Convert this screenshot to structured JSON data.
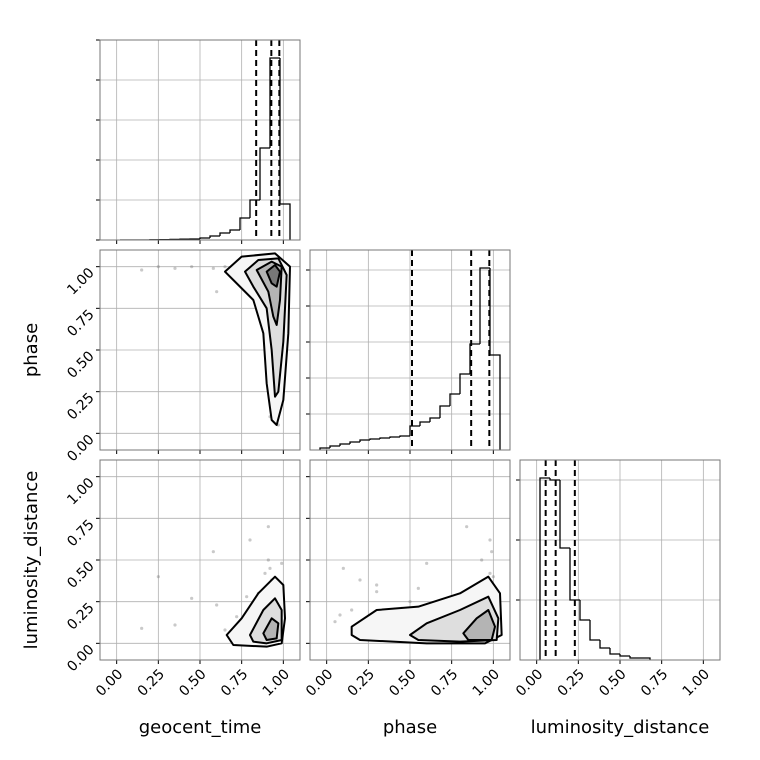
{
  "chart_data": {
    "type": "corner",
    "parameters": [
      "geocent_time",
      "phase",
      "luminosity_distance"
    ],
    "lim": [
      -0.1,
      1.1
    ],
    "ticks": [
      {
        "value": 0,
        "label": "0.00"
      },
      {
        "value": 0.25,
        "label": "0.25"
      },
      {
        "value": 0.5,
        "label": "0.50"
      },
      {
        "value": 0.75,
        "label": "0.75"
      },
      {
        "value": 1,
        "label": "1.00"
      }
    ],
    "grid": true,
    "samples": [
      [
        0.95,
        0.93,
        0.97,
        0.91,
        0.88,
        0.96,
        0.94,
        0.99,
        0.85,
        0.92,
        0.9,
        0.98,
        0.95,
        0.82,
        0.93,
        0.96,
        0.89,
        0.94,
        0.97,
        0.78,
        0.91,
        0.95,
        0.72,
        0.93,
        0.86,
        0.99,
        0.94,
        0.65,
        0.92,
        0.96,
        0.58,
        0.9,
        0.95,
        0.45,
        0.97,
        0.93,
        0.8,
        0.98,
        0.35,
        0.94,
        0.91,
        0.25,
        0.96,
        0.87,
        0.15,
        0.93,
        0.97,
        0.6,
        0.99,
        0.75
      ],
      [
        0.98,
        0.95,
        0.99,
        0.9,
        0.97,
        0.85,
        1.0,
        0.7,
        0.99,
        0.96,
        0.5,
        0.92,
        0.3,
        1.0,
        0.8,
        0.15,
        0.98,
        0.6,
        0.05,
        0.99,
        0.93,
        0.4,
        1.0,
        0.2,
        0.96,
        0.88,
        0.75,
        1.0,
        0.1,
        0.97,
        0.99,
        0.65,
        0.35,
        1.0,
        0.55,
        0.25,
        0.98,
        0.94,
        0.99,
        0.45,
        0.84,
        1.0,
        0.08,
        0.9,
        0.98,
        0.7,
        0.3,
        0.85,
        0.6,
        0.95
      ],
      [
        0.08,
        0.12,
        0.05,
        0.18,
        0.1,
        0.22,
        0.06,
        0.15,
        0.3,
        0.09,
        0.25,
        0.04,
        0.35,
        0.14,
        0.11,
        0.2,
        0.42,
        0.07,
        0.13,
        0.28,
        0.5,
        0.1,
        0.16,
        0.38,
        0.06,
        0.24,
        0.12,
        0.08,
        0.45,
        0.03,
        0.55,
        0.19,
        0.09,
        0.27,
        0.33,
        0.15,
        0.62,
        0.05,
        0.11,
        0.21,
        0.7,
        0.4,
        0.17,
        0.26,
        0.09,
        0.14,
        0.31,
        0.23,
        0.48,
        0.13
      ]
    ],
    "histograms": [
      {
        "bins": [
          0.02,
          0.08,
          0.14,
          0.2,
          0.26,
          0.32,
          0.38,
          0.44,
          0.5,
          0.56,
          0.62,
          0.68,
          0.74,
          0.8,
          0.86,
          0.92,
          0.98,
          1.04
        ],
        "counts": [
          0,
          0,
          0,
          0.001,
          0.002,
          0.003,
          0.004,
          0.005,
          0.01,
          0.02,
          0.035,
          0.05,
          0.11,
          0.2,
          0.46,
          0.91,
          0.18
        ],
        "ylim": [
          0,
          1
        ],
        "yticks": [
          0,
          0.2,
          0.4,
          0.6,
          0.8,
          1
        ],
        "quantiles": [
          0.837,
          0.928,
          0.976
        ]
      },
      {
        "bins": [
          -0.04,
          0.02,
          0.08,
          0.14,
          0.2,
          0.26,
          0.32,
          0.38,
          0.44,
          0.5,
          0.56,
          0.62,
          0.68,
          0.74,
          0.8,
          0.86,
          0.92,
          0.98,
          1.04
        ],
        "counts": [
          0.01,
          0.02,
          0.03,
          0.04,
          0.05,
          0.055,
          0.06,
          0.065,
          0.07,
          0.12,
          0.14,
          0.16,
          0.22,
          0.28,
          0.38,
          0.53,
          0.91,
          0.475
        ],
        "ylim": [
          0,
          1
        ],
        "yticks": [
          0.18,
          0.36,
          0.54,
          0.72,
          0.9
        ],
        "quantiles": [
          0.512,
          0.867,
          0.976
        ]
      },
      {
        "bins": [
          0.02,
          0.08,
          0.14,
          0.2,
          0.26,
          0.32,
          0.38,
          0.44,
          0.5,
          0.56,
          0.62,
          0.68
        ],
        "counts": [
          0.91,
          0.9,
          0.56,
          0.3,
          0.2,
          0.1,
          0.06,
          0.03,
          0.02,
          0.01,
          0.01
        ],
        "ylim": [
          0,
          1
        ],
        "yticks": [
          0.3,
          0.6,
          0.9
        ],
        "quantiles": [
          0.054,
          0.114,
          0.229
        ]
      }
    ],
    "contours": [
      [
        {
          "x": [
            0.65,
            0.75,
            0.95,
            1.04,
            1.03,
            1.0,
            0.96,
            0.93,
            0.9,
            0.88,
            0.82,
            0.7
          ],
          "y": [
            0.97,
            1.06,
            1.08,
            1.0,
            0.6,
            0.2,
            0.05,
            0.08,
            0.3,
            0.6,
            0.8,
            0.92
          ]
        },
        {
          "x": [
            0.77,
            0.85,
            0.97,
            1.02,
            1.0,
            0.97,
            0.95,
            0.93,
            0.9,
            0.82
          ],
          "y": [
            0.97,
            1.04,
            1.05,
            0.95,
            0.55,
            0.25,
            0.22,
            0.5,
            0.75,
            0.88
          ]
        },
        {
          "x": [
            0.84,
            0.93,
            0.99,
            0.98,
            0.96,
            0.94,
            0.91
          ],
          "y": [
            0.98,
            1.03,
            1.0,
            0.8,
            0.65,
            0.7,
            0.85
          ]
        },
        {
          "x": [
            0.9,
            0.95,
            0.98,
            0.96,
            0.93
          ],
          "y": [
            0.97,
            1.01,
            0.97,
            0.88,
            0.9
          ]
        }
      ],
      [
        {
          "x": [
            0.66,
            0.75,
            0.85,
            0.95,
            1.0,
            1.01,
            0.99,
            0.9,
            0.7
          ],
          "y": [
            0.05,
            0.15,
            0.3,
            0.4,
            0.35,
            0.15,
            0.0,
            -0.02,
            -0.01
          ]
        },
        {
          "x": [
            0.8,
            0.88,
            0.95,
            0.99,
            0.99,
            0.9,
            0.82
          ],
          "y": [
            0.05,
            0.2,
            0.27,
            0.2,
            0.02,
            0.0,
            0.01
          ]
        },
        {
          "x": [
            0.88,
            0.93,
            0.97,
            0.96,
            0.9
          ],
          "y": [
            0.06,
            0.15,
            0.12,
            0.03,
            0.02
          ]
        }
      ],
      [
        {
          "x": [
            0.15,
            0.3,
            0.55,
            0.8,
            0.97,
            1.04,
            1.05,
            0.95,
            0.6,
            0.2,
            0.15
          ],
          "y": [
            0.1,
            0.2,
            0.22,
            0.3,
            0.4,
            0.3,
            0.05,
            0.0,
            0.0,
            0.02,
            0.05
          ]
        },
        {
          "x": [
            0.5,
            0.6,
            0.8,
            0.97,
            1.03,
            1.02,
            0.8,
            0.55
          ],
          "y": [
            0.05,
            0.12,
            0.2,
            0.28,
            0.15,
            0.02,
            0.01,
            0.02
          ]
        },
        {
          "x": [
            0.82,
            0.9,
            0.97,
            1.01,
            0.99,
            0.85
          ],
          "y": [
            0.06,
            0.15,
            0.2,
            0.1,
            0.02,
            0.02
          ]
        }
      ]
    ]
  }
}
